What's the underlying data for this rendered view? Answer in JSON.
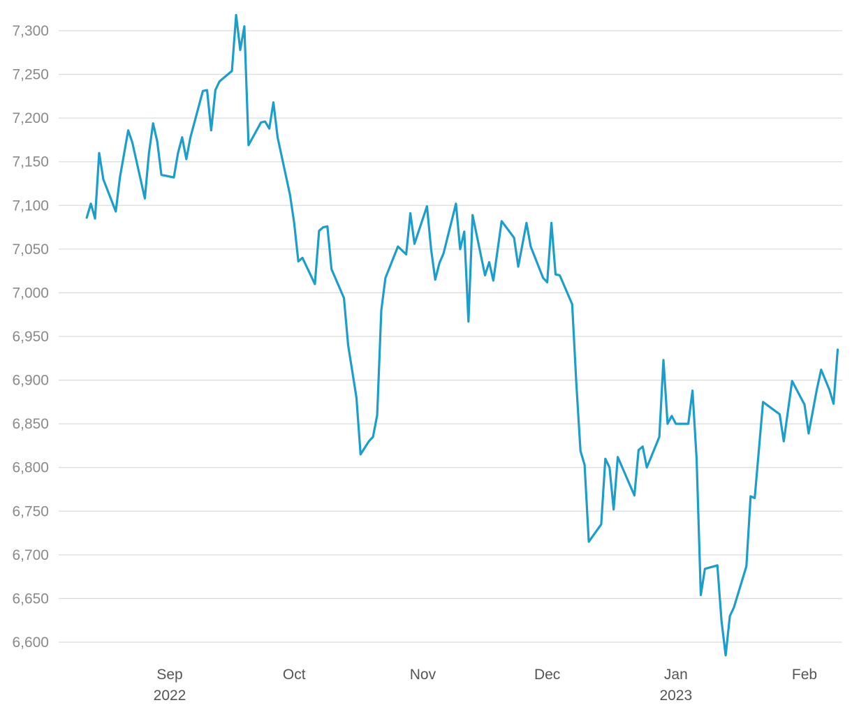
{
  "chart_data": {
    "type": "line",
    "title": "",
    "xlabel": "",
    "ylabel": "",
    "grid": true,
    "legend": "none",
    "ylim": [
      6585,
      7320
    ],
    "y_ticks": [
      "6,600",
      "6,650",
      "6,700",
      "6,750",
      "6,800",
      "6,850",
      "6,900",
      "6,950",
      "7,000",
      "7,050",
      "7,100",
      "7,150",
      "7,200",
      "7,250",
      "7,300"
    ],
    "y_tick_values": [
      6600,
      6650,
      6700,
      6750,
      6800,
      6850,
      6900,
      6950,
      7000,
      7050,
      7100,
      7150,
      7200,
      7250,
      7300
    ],
    "x_ticks": [
      {
        "date": "2022-09-01",
        "label": "Sep",
        "sublabel": "2022"
      },
      {
        "date": "2022-10-01",
        "label": "Oct",
        "sublabel": ""
      },
      {
        "date": "2022-11-01",
        "label": "Nov",
        "sublabel": ""
      },
      {
        "date": "2022-12-01",
        "label": "Dec",
        "sublabel": ""
      },
      {
        "date": "2023-01-01",
        "label": "Jan",
        "sublabel": "2023"
      },
      {
        "date": "2023-02-01",
        "label": "Feb",
        "sublabel": ""
      }
    ],
    "series": [
      {
        "color": "#1a9ecb",
        "points": [
          [
            "2022-08-12",
            7086
          ],
          [
            "2022-08-13",
            7102
          ],
          [
            "2022-08-14",
            7085
          ],
          [
            "2022-08-15",
            7160
          ],
          [
            "2022-08-16",
            7130
          ],
          [
            "2022-08-19",
            7093
          ],
          [
            "2022-08-20",
            7132
          ],
          [
            "2022-08-22",
            7186
          ],
          [
            "2022-08-23",
            7172
          ],
          [
            "2022-08-26",
            7108
          ],
          [
            "2022-08-27",
            7160
          ],
          [
            "2022-08-28",
            7194
          ],
          [
            "2022-08-29",
            7173
          ],
          [
            "2022-08-30",
            7135
          ],
          [
            "2022-09-02",
            7132
          ],
          [
            "2022-09-03",
            7160
          ],
          [
            "2022-09-04",
            7178
          ],
          [
            "2022-09-05",
            7153
          ],
          [
            "2022-09-06",
            7178
          ],
          [
            "2022-09-09",
            7231
          ],
          [
            "2022-09-10",
            7232
          ],
          [
            "2022-09-11",
            7186
          ],
          [
            "2022-09-12",
            7232
          ],
          [
            "2022-09-13",
            7242
          ],
          [
            "2022-09-16",
            7254
          ],
          [
            "2022-09-17",
            7318
          ],
          [
            "2022-09-18",
            7278
          ],
          [
            "2022-09-19",
            7305
          ],
          [
            "2022-09-20",
            7169
          ],
          [
            "2022-09-23",
            7195
          ],
          [
            "2022-09-24",
            7196
          ],
          [
            "2022-09-25",
            7188
          ],
          [
            "2022-09-26",
            7218
          ],
          [
            "2022-09-27",
            7178
          ],
          [
            "2022-09-30",
            7112
          ],
          [
            "2022-10-01",
            7080
          ],
          [
            "2022-10-02",
            7036
          ],
          [
            "2022-10-03",
            7040
          ],
          [
            "2022-10-06",
            7010
          ],
          [
            "2022-10-07",
            7071
          ],
          [
            "2022-10-08",
            7075
          ],
          [
            "2022-10-09",
            7076
          ],
          [
            "2022-10-10",
            7027
          ],
          [
            "2022-10-13",
            6994
          ],
          [
            "2022-10-14",
            6940
          ],
          [
            "2022-10-16",
            6880
          ],
          [
            "2022-10-17",
            6815
          ],
          [
            "2022-10-19",
            6830
          ],
          [
            "2022-10-20",
            6835
          ],
          [
            "2022-10-21",
            6860
          ],
          [
            "2022-10-22",
            6980
          ],
          [
            "2022-10-23",
            7017
          ],
          [
            "2022-10-26",
            7053
          ],
          [
            "2022-10-28",
            7044
          ],
          [
            "2022-10-29",
            7091
          ],
          [
            "2022-10-30",
            7056
          ],
          [
            "2022-11-02",
            7099
          ],
          [
            "2022-11-03",
            7050
          ],
          [
            "2022-11-04",
            7015
          ],
          [
            "2022-11-05",
            7034
          ],
          [
            "2022-11-06",
            7045
          ],
          [
            "2022-11-09",
            7102
          ],
          [
            "2022-11-10",
            7050
          ],
          [
            "2022-11-11",
            7070
          ],
          [
            "2022-11-12",
            6967
          ],
          [
            "2022-11-13",
            7089
          ],
          [
            "2022-11-16",
            7020
          ],
          [
            "2022-11-17",
            7035
          ],
          [
            "2022-11-18",
            7014
          ],
          [
            "2022-11-20",
            7082
          ],
          [
            "2022-11-23",
            7063
          ],
          [
            "2022-11-24",
            7030
          ],
          [
            "2022-11-26",
            7080
          ],
          [
            "2022-11-27",
            7053
          ],
          [
            "2022-11-30",
            7017
          ],
          [
            "2022-12-01",
            7012
          ],
          [
            "2022-12-02",
            7080
          ],
          [
            "2022-12-03",
            7021
          ],
          [
            "2022-12-04",
            7020
          ],
          [
            "2022-12-07",
            6987
          ],
          [
            "2022-12-08",
            6897
          ],
          [
            "2022-12-09",
            6819
          ],
          [
            "2022-12-10",
            6803
          ],
          [
            "2022-12-11",
            6715
          ],
          [
            "2022-12-14",
            6735
          ],
          [
            "2022-12-15",
            6810
          ],
          [
            "2022-12-16",
            6800
          ],
          [
            "2022-12-17",
            6752
          ],
          [
            "2022-12-18",
            6812
          ],
          [
            "2022-12-22",
            6768
          ],
          [
            "2022-12-23",
            6820
          ],
          [
            "2022-12-24",
            6824
          ],
          [
            "2022-12-25",
            6800
          ],
          [
            "2022-12-28",
            6835
          ],
          [
            "2022-12-29",
            6923
          ],
          [
            "2022-12-30",
            6850
          ],
          [
            "2022-12-31",
            6859
          ],
          [
            "2023-01-01",
            6850
          ],
          [
            "2023-01-02",
            6850
          ],
          [
            "2023-01-03",
            6850
          ],
          [
            "2023-01-04",
            6850
          ],
          [
            "2023-01-05",
            6888
          ],
          [
            "2023-01-06",
            6810
          ],
          [
            "2023-01-07",
            6654
          ],
          [
            "2023-01-08",
            6684
          ],
          [
            "2023-01-11",
            6688
          ],
          [
            "2023-01-12",
            6624
          ],
          [
            "2023-01-13",
            6585
          ],
          [
            "2023-01-14",
            6630
          ],
          [
            "2023-01-15",
            6640
          ],
          [
            "2023-01-18",
            6687
          ],
          [
            "2023-01-19",
            6767
          ],
          [
            "2023-01-20",
            6765
          ],
          [
            "2023-01-22",
            6875
          ],
          [
            "2023-01-26",
            6861
          ],
          [
            "2023-01-27",
            6830
          ],
          [
            "2023-01-29",
            6899
          ],
          [
            "2023-02-01",
            6872
          ],
          [
            "2023-02-02",
            6839
          ],
          [
            "2023-02-04",
            6890
          ],
          [
            "2023-02-05",
            6912
          ],
          [
            "2023-02-07",
            6889
          ],
          [
            "2023-02-08",
            6873
          ],
          [
            "2023-02-09",
            6935
          ]
        ]
      }
    ]
  }
}
